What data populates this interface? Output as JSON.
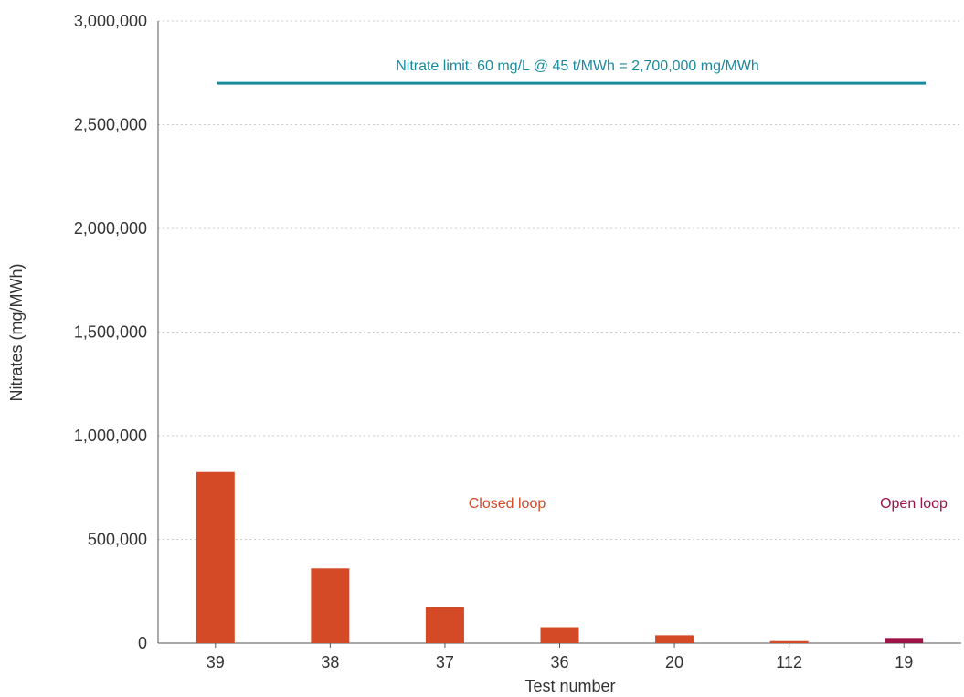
{
  "chart_data": {
    "type": "bar",
    "title": "",
    "xlabel": "Test number",
    "ylabel": "Nitrates (mg/MWh)",
    "categories": [
      "39",
      "38",
      "37",
      "36",
      "20",
      "112",
      "19"
    ],
    "values": [
      825000,
      360000,
      175000,
      77000,
      38000,
      10000,
      25000
    ],
    "groups": [
      "closed",
      "closed",
      "closed",
      "closed",
      "closed",
      "closed",
      "open"
    ],
    "ylim": [
      0,
      3000000
    ],
    "yticks": [
      0,
      500000,
      1000000,
      1500000,
      2000000,
      2500000,
      3000000
    ],
    "ytick_labels": [
      "0",
      "500,000",
      "1,000,000",
      "1,500,000",
      "2,000,000",
      "2,500,000",
      "3,000,000"
    ],
    "grid": true,
    "limit_line": {
      "value": 2700000,
      "label": "Nitrate limit: 60 mg/L @ 45 t/MWh = 2,700,000 mg/MWh",
      "color": "#1a8a9c"
    },
    "annotations": {
      "closed_loop": "Closed loop",
      "open_loop": "Open loop"
    },
    "colors": {
      "closed": "#d44a27",
      "open": "#9c1347",
      "grid": "#cccccc",
      "axis": "#555555",
      "text": "#333333"
    }
  }
}
